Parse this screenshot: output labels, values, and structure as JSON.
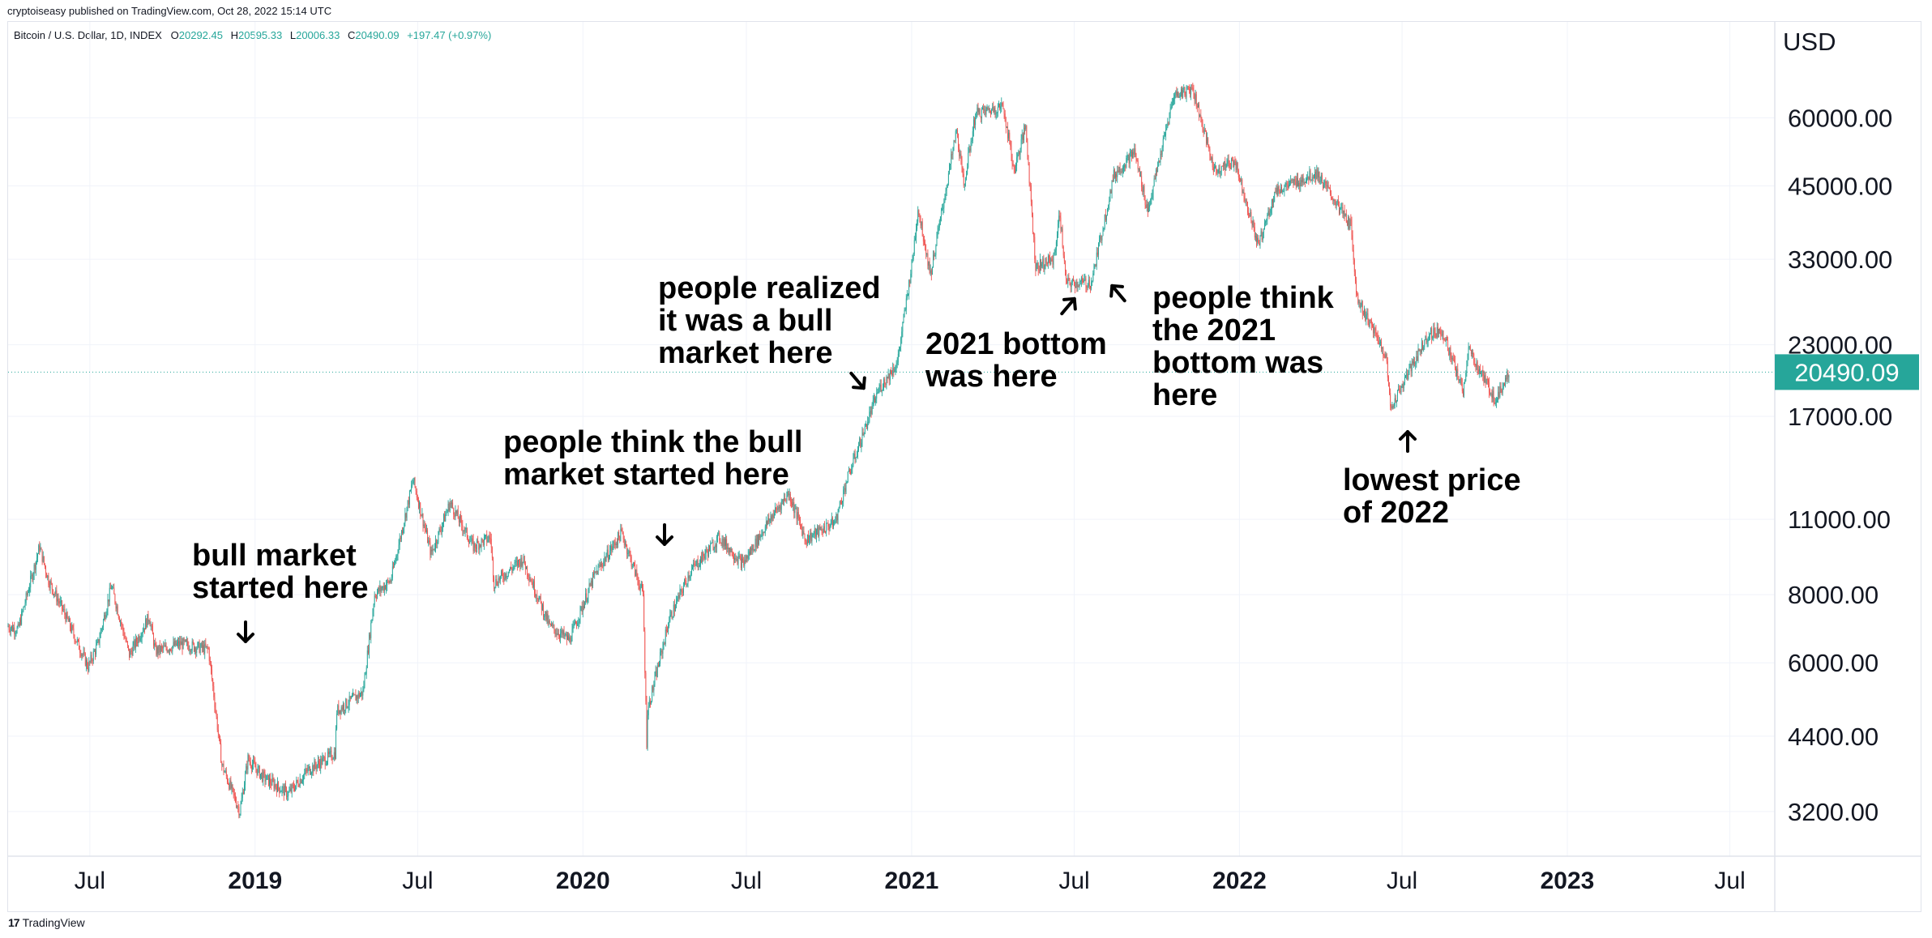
{
  "publisher": "cryptoiseasy published on TradingView.com, Oct 28, 2022 15:14 UTC",
  "legend": {
    "symbol": "Bitcoin / U.S. Dollar, 1D, INDEX",
    "open_label": "O",
    "open": "20292.45",
    "high_label": "H",
    "high": "20595.33",
    "low_label": "L",
    "low": "20006.33",
    "close_label": "C",
    "close": "20490.09",
    "change": "+197.47 (+0.97%)"
  },
  "footer": {
    "brand": "TradingView"
  },
  "colors": {
    "up": "#26a69a",
    "down": "#ef5350",
    "price_tag": "#26a69a",
    "grid": "#f0f3fa",
    "axis_border": "#e0e3eb",
    "annotation": "#000000"
  },
  "chart_data": {
    "type": "candlestick",
    "symbol": "Bitcoin / U.S. Dollar",
    "interval": "1D",
    "currency": "USD",
    "y_scale": "log",
    "ylim": [
      2650,
      90000
    ],
    "xlim": [
      "2018-04-01",
      "2023-08-20"
    ],
    "last_price": "20490.09",
    "y_ticks": [
      {
        "value": 3200,
        "label": "3200.00"
      },
      {
        "value": 4400,
        "label": "4400.00"
      },
      {
        "value": 6000,
        "label": "6000.00"
      },
      {
        "value": 8000,
        "label": "8000.00"
      },
      {
        "value": 11000,
        "label": "11000.00"
      },
      {
        "value": 17000,
        "label": "17000.00"
      },
      {
        "value": 23000,
        "label": "23000.00"
      },
      {
        "value": 33000,
        "label": "33000.00"
      },
      {
        "value": 45000,
        "label": "45000.00"
      },
      {
        "value": 60000,
        "label": "60000.00"
      }
    ],
    "x_ticks": [
      {
        "date": "2018-07-01",
        "label": "Jul",
        "year": false
      },
      {
        "date": "2019-01-01",
        "label": "2019",
        "year": true
      },
      {
        "date": "2019-07-01",
        "label": "Jul",
        "year": false
      },
      {
        "date": "2020-01-01",
        "label": "2020",
        "year": true
      },
      {
        "date": "2020-07-01",
        "label": "Jul",
        "year": false
      },
      {
        "date": "2021-01-01",
        "label": "2021",
        "year": true
      },
      {
        "date": "2021-07-01",
        "label": "Jul",
        "year": false
      },
      {
        "date": "2022-01-01",
        "label": "2022",
        "year": true
      },
      {
        "date": "2022-07-01",
        "label": "Jul",
        "year": false
      },
      {
        "date": "2023-01-01",
        "label": "2023",
        "year": true
      },
      {
        "date": "2023-07-01",
        "label": "Jul",
        "year": false
      }
    ],
    "price_path": [
      [
        "2018-04-01",
        7000
      ],
      [
        "2018-04-12",
        6900
      ],
      [
        "2018-05-06",
        9800
      ],
      [
        "2018-05-16",
        8500
      ],
      [
        "2018-06-01",
        7500
      ],
      [
        "2018-06-29",
        5900
      ],
      [
        "2018-07-10",
        6500
      ],
      [
        "2018-07-25",
        8300
      ],
      [
        "2018-08-14",
        6200
      ],
      [
        "2018-09-05",
        7300
      ],
      [
        "2018-09-12",
        6300
      ],
      [
        "2018-10-10",
        6500
      ],
      [
        "2018-11-10",
        6350
      ],
      [
        "2018-11-14",
        5600
      ],
      [
        "2018-11-25",
        3900
      ],
      [
        "2018-12-15",
        3200
      ],
      [
        "2018-12-24",
        4000
      ],
      [
        "2019-01-10",
        3700
      ],
      [
        "2019-02-07",
        3450
      ],
      [
        "2019-02-28",
        3800
      ],
      [
        "2019-03-31",
        4100
      ],
      [
        "2019-04-02",
        4900
      ],
      [
        "2019-05-01",
        5300
      ],
      [
        "2019-05-14",
        8000
      ],
      [
        "2019-06-01",
        8500
      ],
      [
        "2019-06-26",
        13000
      ],
      [
        "2019-07-16",
        9500
      ],
      [
        "2019-08-06",
        11800
      ],
      [
        "2019-09-01",
        9800
      ],
      [
        "2019-09-20",
        10200
      ],
      [
        "2019-09-24",
        8400
      ],
      [
        "2019-10-26",
        9300
      ],
      [
        "2019-11-25",
        7000
      ],
      [
        "2019-12-17",
        6600
      ],
      [
        "2020-01-14",
        8700
      ],
      [
        "2020-02-13",
        10400
      ],
      [
        "2020-03-08",
        8000
      ],
      [
        "2020-03-12",
        4300
      ],
      [
        "2020-03-13",
        4900
      ],
      [
        "2020-04-06",
        7200
      ],
      [
        "2020-04-29",
        8800
      ],
      [
        "2020-06-01",
        10200
      ],
      [
        "2020-06-27",
        9100
      ],
      [
        "2020-07-27",
        11000
      ],
      [
        "2020-08-17",
        12300
      ],
      [
        "2020-09-05",
        10100
      ],
      [
        "2020-10-08",
        10900
      ],
      [
        "2020-10-21",
        13000
      ],
      [
        "2020-11-25",
        19000
      ],
      [
        "2020-12-16",
        21300
      ],
      [
        "2021-01-02",
        33000
      ],
      [
        "2021-01-08",
        41000
      ],
      [
        "2021-01-22",
        31000
      ],
      [
        "2021-02-20",
        57000
      ],
      [
        "2021-02-28",
        45000
      ],
      [
        "2021-03-13",
        61000
      ],
      [
        "2021-04-13",
        63000
      ],
      [
        "2021-04-25",
        48000
      ],
      [
        "2021-05-08",
        58000
      ],
      [
        "2021-05-19",
        32000
      ],
      [
        "2021-06-08",
        33000
      ],
      [
        "2021-06-15",
        40000
      ],
      [
        "2021-06-22",
        29800
      ],
      [
        "2021-07-20",
        29900
      ],
      [
        "2021-08-14",
        47000
      ],
      [
        "2021-09-06",
        52000
      ],
      [
        "2021-09-21",
        40500
      ],
      [
        "2021-10-20",
        66000
      ],
      [
        "2021-11-10",
        68000
      ],
      [
        "2021-12-04",
        48000
      ],
      [
        "2021-12-27",
        50000
      ],
      [
        "2022-01-22",
        35000
      ],
      [
        "2022-02-10",
        44000
      ],
      [
        "2022-03-28",
        47500
      ],
      [
        "2022-05-05",
        38000
      ],
      [
        "2022-05-12",
        28000
      ],
      [
        "2022-06-13",
        22000
      ],
      [
        "2022-06-18",
        17600
      ],
      [
        "2022-07-30",
        24000
      ],
      [
        "2022-08-14",
        24500
      ],
      [
        "2022-09-07",
        18900
      ],
      [
        "2022-09-13",
        22500
      ],
      [
        "2022-10-13",
        18200
      ],
      [
        "2022-10-28",
        20490
      ]
    ],
    "annotations": [
      {
        "lines": [
          "bull market",
          "started here"
        ],
        "arrow": "down"
      },
      {
        "lines": [
          "people think the bull",
          "market started here"
        ],
        "arrow": "down"
      },
      {
        "lines": [
          "people realized",
          "it was a bull",
          "market here"
        ],
        "arrow": "down-right"
      },
      {
        "lines": [
          "2021 bottom",
          "was here"
        ],
        "arrow": "up-right"
      },
      {
        "lines": [
          "people think",
          "the 2021",
          "bottom was",
          "here"
        ],
        "arrow": "up-left"
      },
      {
        "lines": [
          "lowest price",
          "of 2022"
        ],
        "arrow": "up"
      }
    ]
  }
}
